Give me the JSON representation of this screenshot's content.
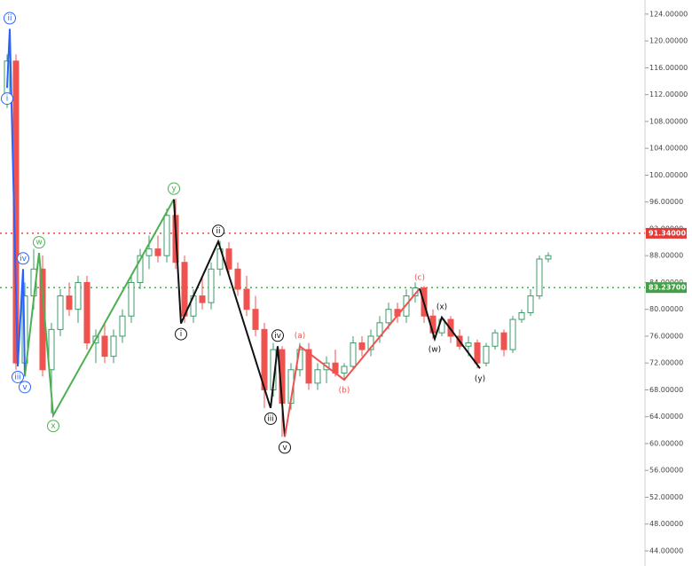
{
  "chart_data": {
    "type": "candlestick",
    "ylim": [
      41.75,
      126.1
    ],
    "yticks": [
      {
        "value": 124,
        "label": "124.00000"
      },
      {
        "value": 120,
        "label": "120.00000"
      },
      {
        "value": 116,
        "label": "116.00000"
      },
      {
        "value": 112,
        "label": "112.00000"
      },
      {
        "value": 108,
        "label": "108.00000"
      },
      {
        "value": 104,
        "label": "104.00000"
      },
      {
        "value": 100,
        "label": "100.00000"
      },
      {
        "value": 96,
        "label": "96.00000"
      },
      {
        "value": 92,
        "label": "92.00000"
      },
      {
        "value": 88,
        "label": "88.00000"
      },
      {
        "value": 84,
        "label": "84.00000"
      },
      {
        "value": 80,
        "label": "80.00000"
      },
      {
        "value": 76,
        "label": "76.00000"
      },
      {
        "value": 72,
        "label": "72.00000"
      },
      {
        "value": 68,
        "label": "68.00000"
      },
      {
        "value": 64,
        "label": "64.00000"
      },
      {
        "value": 60,
        "label": "60.00000"
      },
      {
        "value": 56,
        "label": "56.00000"
      },
      {
        "value": 52,
        "label": "52.00000"
      },
      {
        "value": 48,
        "label": "48.00000"
      },
      {
        "value": 44,
        "label": "44.00000"
      }
    ],
    "up_color": "#3d9a6a",
    "down_color": "#ef5350",
    "open": [
      112,
      117,
      72,
      82,
      86,
      71,
      77,
      82,
      80,
      84,
      75,
      76,
      73,
      76,
      79,
      84,
      88,
      89,
      88,
      94,
      87,
      79,
      82,
      81,
      86,
      89,
      86,
      83,
      80,
      77,
      68,
      74,
      66,
      71,
      74,
      69,
      71,
      72,
      70.5,
      71.5,
      75,
      74,
      76,
      78,
      80,
      79,
      82,
      83.2,
      79,
      76.5,
      78.5,
      76,
      74.5,
      75,
      72,
      74.5,
      76.5,
      74,
      78.5,
      79.5,
      82,
      87.5
    ],
    "high": [
      118,
      118,
      84,
      89,
      88,
      78,
      83,
      84,
      85,
      85,
      77,
      78,
      77,
      80,
      85,
      89,
      91,
      91,
      95,
      96.5,
      88,
      83,
      85,
      87,
      90.2,
      90,
      87,
      85,
      82,
      78,
      75,
      74.5,
      72,
      75,
      75,
      72,
      73,
      74,
      72,
      76,
      76,
      77,
      79,
      81,
      81,
      83,
      84,
      83.5,
      80,
      79,
      79,
      77,
      76,
      75.5,
      75,
      77,
      77,
      79,
      80,
      83,
      88,
      88.5
    ],
    "low": [
      110,
      71,
      71,
      80,
      70,
      64.5,
      76,
      79,
      78,
      74,
      72,
      72,
      72,
      75,
      78,
      83,
      86,
      87,
      87,
      86,
      78,
      78,
      80,
      80,
      85,
      85,
      82,
      79,
      76,
      65.3,
      67,
      61,
      65,
      70,
      68,
      68,
      69,
      70,
      69.5,
      71,
      73,
      73,
      75,
      77,
      78,
      78,
      81,
      78,
      75.6,
      76,
      75,
      74,
      73,
      71.2,
      71.5,
      74,
      73,
      73.5,
      78,
      79,
      81.5,
      87
    ],
    "close": [
      117,
      72,
      82,
      86,
      71,
      77,
      82,
      80,
      84,
      75,
      76,
      73,
      76,
      79,
      84,
      88,
      89,
      88,
      94,
      87,
      79,
      82,
      81,
      86,
      89,
      86,
      83,
      80,
      77,
      68,
      74,
      66,
      71,
      74,
      69,
      71,
      72,
      70.5,
      71.5,
      75,
      74,
      76,
      78,
      80,
      79,
      82,
      83.2,
      79,
      76.5,
      78.5,
      76,
      74.5,
      75,
      72,
      74.5,
      76.5,
      74,
      78.5,
      79.5,
      82,
      87.5,
      88
    ],
    "levels": [
      {
        "value": 91.34,
        "label": "91.34000",
        "color": "#e53935"
      },
      {
        "value": 83.237,
        "label": "83.23700",
        "color": "#43a047"
      }
    ],
    "waves": [
      {
        "color": "#2962ff",
        "x": [
          0,
          0.3,
          1.2,
          1.8,
          2.0
        ],
        "values": [
          113,
          121.8,
          71.5,
          86,
          70
        ],
        "labels": [
          "i",
          "ii",
          "iii",
          "iv",
          "v"
        ],
        "circled": true
      },
      {
        "color": "#4caf50",
        "x": [
          2.0,
          3.6,
          5.2,
          18.8
        ],
        "values": [
          70,
          88.4,
          64.2,
          96.4
        ],
        "labels": [
          null,
          "w",
          "x",
          "y"
        ],
        "circled": true
      },
      {
        "color": "#111111",
        "x": [
          18.8,
          19.6,
          23.8,
          29.7,
          30.5,
          31.3
        ],
        "values": [
          96.4,
          77.9,
          90.1,
          65.3,
          74.5,
          61
        ],
        "labels": [
          null,
          "i",
          "ii",
          "iii",
          "iv",
          "v"
        ],
        "circled": true
      },
      {
        "color": "#ef5350",
        "x": [
          31.3,
          33,
          38,
          46.5
        ],
        "values": [
          61,
          74.5,
          69.5,
          83.1
        ],
        "labels": [
          null,
          "(a)",
          "(b)",
          "(c)"
        ],
        "circled": false
      },
      {
        "color": "#111111",
        "x": [
          46.5,
          48.2,
          49,
          53.3
        ],
        "values": [
          83.1,
          75.6,
          78.8,
          71.2
        ],
        "labels": [
          null,
          "(w)",
          "(x)",
          "(y)"
        ],
        "circled": false
      }
    ]
  }
}
